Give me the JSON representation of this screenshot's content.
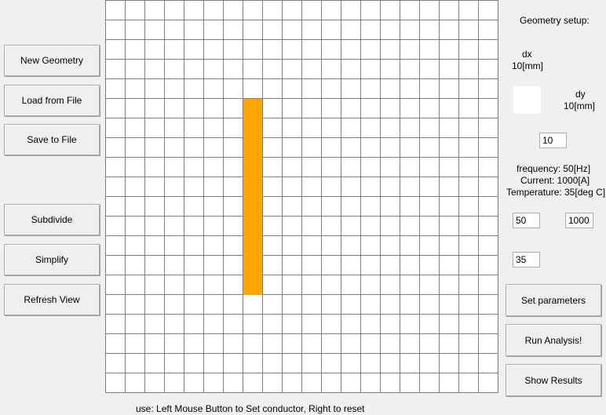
{
  "left_buttons": {
    "new_geometry": "New Geometry",
    "load_from_file": "Load from File",
    "save_to_file": "Save to File",
    "subdivide": "Subdivide",
    "simplify": "Simplify",
    "refresh_view": "Refresh View"
  },
  "grid": {
    "columns": 20,
    "rows": 20,
    "conductor_column": 7,
    "conductor_rows": [
      5,
      6,
      7,
      8,
      9,
      10,
      11,
      12,
      13,
      14
    ],
    "conductor_color": "#ffa500",
    "line_color": "#7d7d7d"
  },
  "right_panel": {
    "title": "Geometry setup:",
    "dx_label": "dx",
    "dx_unit": "10[mm]",
    "dy_label": "dy",
    "dy_unit": "10[mm]",
    "dx_value": "",
    "dy_value": "10",
    "frequency_label": "frequency: 50[Hz]",
    "current_label": "Current: 1000[A]",
    "temperature_label": "Temperature: 35[deg C]",
    "frequency_value": "50",
    "current_value": "1000",
    "temperature_value": "35",
    "set_parameters": "Set parameters",
    "run_analysis": "Run Analysis!",
    "show_results": "Show Results"
  },
  "status_text": "use: Left Mouse Button to Set conductor, Right to reset"
}
